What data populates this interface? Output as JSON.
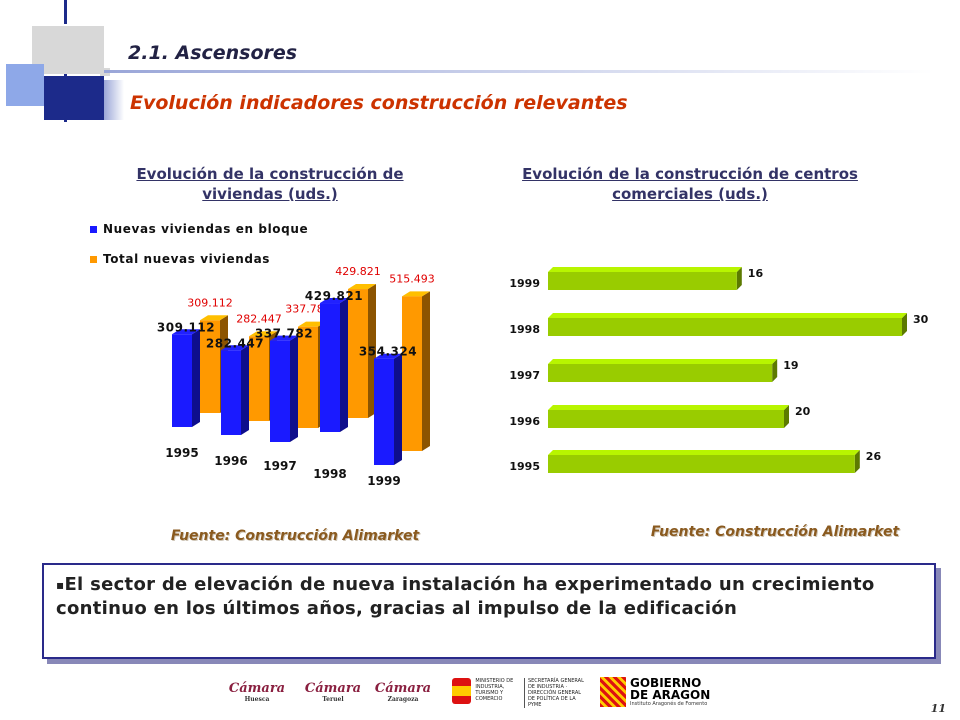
{
  "header": {
    "section_title": "2.1. Ascensores",
    "subtitle": "Evolución indicadores construcción relevantes"
  },
  "chart_data": [
    {
      "type": "bar",
      "title": "Evolución de la construcción de viviendas (uds.)",
      "categories": [
        "1995",
        "1996",
        "1997",
        "1998",
        "1999"
      ],
      "series": [
        {
          "name": "Nuevas viviendas en bloque",
          "values": [
            309.112,
            282.447,
            337.782,
            429.821,
            354.324
          ],
          "labels": [
            "309.112",
            "282.447",
            "337.782",
            "429.821",
            "354.324"
          ],
          "color": "#1a1aff"
        },
        {
          "name": "Total nuevas viviendas",
          "values": [
            309.112,
            282.447,
            337.782,
            429.821,
            515.493
          ],
          "labels": [
            "309.112",
            "282.447",
            "337.782",
            "429.821",
            "515.493"
          ],
          "color": "#ff9900"
        }
      ],
      "legend": "top-left",
      "grid": false,
      "source": "Fuente: Construcción Alimarket"
    },
    {
      "type": "bar",
      "orientation": "horizontal",
      "title": "Evolución de la construcción de centros comerciales (uds.)",
      "categories": [
        "1999",
        "1998",
        "1997",
        "1996",
        "1995"
      ],
      "values": [
        16,
        30,
        19,
        20,
        26
      ],
      "color": "#99cc00",
      "grid": false,
      "source": "Fuente: Construcción Alimarket"
    }
  ],
  "summary": {
    "bullet": "▪",
    "text": "El sector de elevación de nueva instalación ha experimentado un crecimiento continuo en los últimos años, gracias al impulso de la edificación"
  },
  "footer": {
    "logos": [
      {
        "name": "Cámara",
        "sub": "Huesca"
      },
      {
        "name": "Cámara",
        "sub": "Teruel"
      },
      {
        "name": "Cámara",
        "sub": "Zaragoza"
      }
    ],
    "ministry": {
      "left": "MINISTERIO DE INDUSTRIA, TURISMO Y COMERCIO",
      "right": "SECRETARÍA GENERAL DE INDUSTRIA · DIRECCIÓN GENERAL DE POLÍTICA DE LA PYME"
    },
    "gobierno": {
      "line1": "GOBIERNO",
      "line2": "DE ARAGON",
      "line3": "Instituto Aragonés de Fomento"
    },
    "page_number": "11"
  },
  "colors": {
    "accent_blue": "#2a2a8a",
    "title_red": "#cc3300",
    "label_red": "#e00000"
  }
}
